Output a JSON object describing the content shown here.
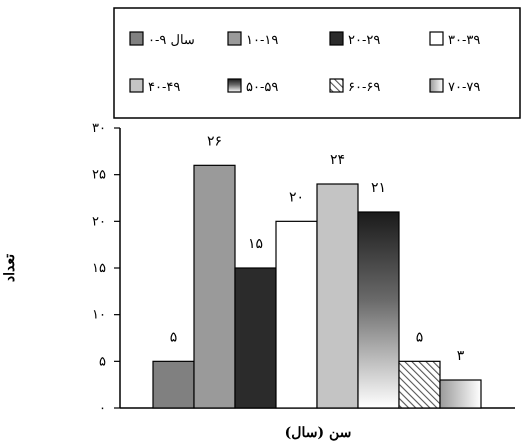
{
  "chart_data": {
    "type": "bar",
    "categories": [
      "۰-۹ سال",
      "۱۰-۱۹",
      "۲۰-۲۹",
      "۳۰-۳۹",
      "۴۰-۴۹",
      "۵۰-۵۹",
      "۶۰-۶۹",
      "۷۰-۷۹"
    ],
    "values": [
      5,
      26,
      15,
      20,
      24,
      21,
      5,
      3
    ],
    "data_labels": [
      "۵",
      "۲۶",
      "۱۵",
      "۲۰",
      "۲۴",
      "۲۱",
      "۵",
      "۳"
    ],
    "legend_labels": [
      "۰-۹ سال",
      "۱۰-۱۹",
      "۲۰-۲۹",
      "۳۰-۳۹",
      "۴۰-۴۹",
      "۵۰-۵۹",
      "۶۰-۶۹",
      "۷۰-۷۹"
    ],
    "colors": [
      "#808080",
      "#9a9a9a",
      "#2b2b2b",
      "#ffffff",
      "#c4c4c4",
      "gradient-black-white",
      "hatch-gray",
      "gradient-gray-white"
    ],
    "xlabel": "سن (سال)",
    "ylabel": "تعداد",
    "ylim": [
      0,
      30
    ],
    "yticks": [
      0,
      5,
      10,
      15,
      20,
      25,
      30
    ],
    "ytick_labels": [
      "۰",
      "۵",
      "۱۰",
      "۱۵",
      "۲۰",
      "۲۵",
      "۳۰"
    ],
    "legend_position": "top",
    "grid": false
  }
}
